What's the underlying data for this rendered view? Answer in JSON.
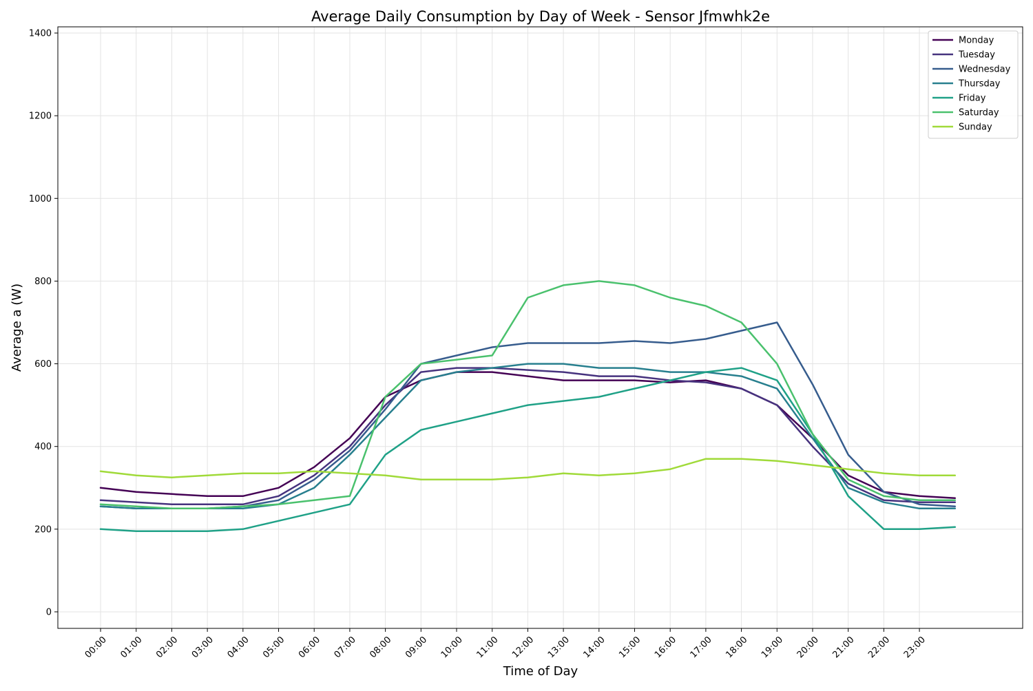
{
  "chart_data": {
    "type": "line",
    "title": "Average Daily Consumption by Day of Week - Sensor Jfmwhk2e",
    "xlabel": "Time of Day",
    "ylabel": "Average a (W)",
    "x_unit": "hours",
    "xlim": [
      -1.2,
      25.9
    ],
    "ylim": [
      -40,
      1415
    ],
    "x_ticks": [
      {
        "value": 0,
        "label": "00:00"
      },
      {
        "value": 1,
        "label": "01:00"
      },
      {
        "value": 2,
        "label": "02:00"
      },
      {
        "value": 3,
        "label": "03:00"
      },
      {
        "value": 4,
        "label": "04:00"
      },
      {
        "value": 5,
        "label": "05:00"
      },
      {
        "value": 6,
        "label": "06:00"
      },
      {
        "value": 7,
        "label": "07:00"
      },
      {
        "value": 8,
        "label": "08:00"
      },
      {
        "value": 9,
        "label": "09:00"
      },
      {
        "value": 10,
        "label": "10:00"
      },
      {
        "value": 11,
        "label": "11:00"
      },
      {
        "value": 12,
        "label": "12:00"
      },
      {
        "value": 13,
        "label": "13:00"
      },
      {
        "value": 14,
        "label": "14:00"
      },
      {
        "value": 15,
        "label": "15:00"
      },
      {
        "value": 16,
        "label": "16:00"
      },
      {
        "value": 17,
        "label": "17:00"
      },
      {
        "value": 18,
        "label": "18:00"
      },
      {
        "value": 19,
        "label": "19:00"
      },
      {
        "value": 20,
        "label": "20:00"
      },
      {
        "value": 21,
        "label": "21:00"
      },
      {
        "value": 22,
        "label": "22:00"
      },
      {
        "value": 23,
        "label": "23:00"
      }
    ],
    "y_ticks": [
      {
        "value": 0,
        "label": "0"
      },
      {
        "value": 200,
        "label": "200"
      },
      {
        "value": 400,
        "label": "400"
      },
      {
        "value": 600,
        "label": "600"
      },
      {
        "value": 800,
        "label": "800"
      },
      {
        "value": 1000,
        "label": "1000"
      },
      {
        "value": 1200,
        "label": "1200"
      },
      {
        "value": 1400,
        "label": "1400"
      }
    ],
    "grid": true,
    "legend_position": "top-right",
    "series": [
      {
        "name": "Monday",
        "color": "#440154",
        "x": [
          0,
          1,
          2,
          3,
          4,
          5,
          6,
          7,
          8,
          9,
          10,
          11,
          12,
          13,
          14,
          15,
          16,
          17,
          18,
          19,
          20,
          21,
          22,
          23,
          24
        ],
        "values": [
          300,
          290,
          285,
          280,
          280,
          300,
          350,
          420,
          520,
          560,
          580,
          580,
          570,
          560,
          560,
          560,
          555,
          560,
          540,
          500,
          420,
          330,
          290,
          280,
          275
        ]
      },
      {
        "name": "Tuesday",
        "color": "#46327e",
        "x": [
          0,
          1,
          2,
          3,
          4,
          5,
          6,
          7,
          8,
          9,
          10,
          11,
          12,
          13,
          14,
          15,
          16,
          17,
          18,
          19,
          20,
          21,
          22,
          23,
          24
        ],
        "values": [
          270,
          265,
          260,
          260,
          260,
          280,
          330,
          400,
          500,
          580,
          590,
          590,
          585,
          580,
          570,
          570,
          560,
          555,
          540,
          500,
          400,
          310,
          270,
          265,
          265
        ]
      },
      {
        "name": "Wednesday",
        "color": "#365c8d",
        "x": [
          0,
          1,
          2,
          3,
          4,
          5,
          6,
          7,
          8,
          9,
          10,
          11,
          12,
          13,
          14,
          15,
          16,
          17,
          18,
          19,
          20,
          21,
          22,
          23,
          24
        ],
        "values": [
          255,
          250,
          250,
          250,
          255,
          270,
          320,
          390,
          490,
          600,
          620,
          640,
          650,
          650,
          650,
          655,
          650,
          660,
          680,
          700,
          550,
          380,
          290,
          260,
          255
        ]
      },
      {
        "name": "Thursday",
        "color": "#277f8e",
        "x": [
          0,
          1,
          2,
          3,
          4,
          5,
          6,
          7,
          8,
          9,
          10,
          11,
          12,
          13,
          14,
          15,
          16,
          17,
          18,
          19,
          20,
          21,
          22,
          23,
          24
        ],
        "values": [
          255,
          250,
          250,
          250,
          250,
          260,
          300,
          380,
          470,
          560,
          580,
          590,
          600,
          600,
          590,
          590,
          580,
          580,
          570,
          540,
          420,
          300,
          265,
          250,
          250
        ]
      },
      {
        "name": "Friday",
        "color": "#1fa187",
        "x": [
          0,
          1,
          2,
          3,
          4,
          5,
          6,
          7,
          8,
          9,
          10,
          11,
          12,
          13,
          14,
          15,
          16,
          17,
          18,
          19,
          20,
          21,
          22,
          23,
          24
        ],
        "values": [
          200,
          195,
          195,
          195,
          200,
          220,
          240,
          260,
          380,
          440,
          460,
          480,
          500,
          510,
          520,
          540,
          560,
          580,
          590,
          560,
          430,
          280,
          200,
          200,
          205
        ]
      },
      {
        "name": "Saturday",
        "color": "#4ac16d",
        "x": [
          0,
          1,
          2,
          3,
          4,
          5,
          6,
          7,
          8,
          9,
          10,
          11,
          12,
          13,
          14,
          15,
          16,
          17,
          18,
          19,
          20,
          21,
          22,
          23,
          24
        ],
        "values": [
          260,
          255,
          250,
          250,
          255,
          260,
          270,
          280,
          520,
          600,
          610,
          620,
          760,
          790,
          800,
          790,
          760,
          740,
          700,
          600,
          430,
          320,
          280,
          270,
          270
        ]
      },
      {
        "name": "Sunday",
        "color": "#a0da39",
        "x": [
          0,
          1,
          2,
          3,
          4,
          5,
          6,
          7,
          8,
          9,
          10,
          11,
          12,
          13,
          14,
          15,
          16,
          17,
          18,
          19,
          20,
          21,
          22,
          23,
          24
        ],
        "values": [
          340,
          330,
          325,
          330,
          335,
          335,
          340,
          335,
          330,
          320,
          320,
          320,
          325,
          335,
          330,
          335,
          345,
          370,
          370,
          365,
          355,
          345,
          335,
          330,
          330
        ]
      }
    ]
  }
}
